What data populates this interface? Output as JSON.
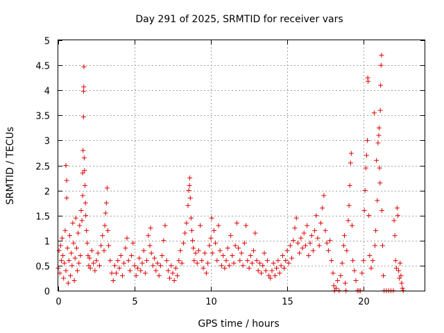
{
  "chart_data": {
    "type": "scatter",
    "title": "Day 291 of 2025, SRMTID for receiver vars",
    "xlabel": "GPS time / hours",
    "ylabel": "SRMTID / TECUs",
    "xlim": [
      0,
      24
    ],
    "ylim": [
      0,
      5
    ],
    "x_ticks": [
      0,
      5,
      10,
      15,
      20
    ],
    "x_tick_labels": [
      "0",
      "5",
      "10",
      "15",
      "20"
    ],
    "y_ticks": [
      0,
      0.5,
      1,
      1.5,
      2,
      2.5,
      3,
      3.5,
      4,
      4.5,
      5
    ],
    "y_tick_labels": [
      "0",
      "0.5",
      "1",
      "1.5",
      "2",
      "2.5",
      "3",
      "3.5",
      "4",
      "4.5",
      "5"
    ],
    "grid": true,
    "marker": "plus",
    "series_color": "#e00000",
    "series": [
      {
        "name": "SRMTID",
        "points": [
          [
            0.0,
            0.45
          ],
          [
            0.05,
            0.8
          ],
          [
            0.1,
            0.35
          ],
          [
            0.15,
            0.9
          ],
          [
            0.2,
            0.6
          ],
          [
            0.25,
            1.05
          ],
          [
            0.3,
            0.7
          ],
          [
            0.35,
            0.25
          ],
          [
            0.4,
            0.55
          ],
          [
            0.45,
            1.2
          ],
          [
            0.5,
            0.4
          ],
          [
            0.5,
            2.5
          ],
          [
            0.55,
            2.2
          ],
          [
            0.55,
            1.85
          ],
          [
            0.6,
            0.85
          ],
          [
            0.65,
            0.15
          ],
          [
            0.7,
            0.6
          ],
          [
            0.75,
            1.1
          ],
          [
            0.8,
            0.3
          ],
          [
            0.85,
            0.75
          ],
          [
            0.9,
            0.5
          ],
          [
            0.95,
            1.35
          ],
          [
            1.0,
            0.95
          ],
          [
            1.05,
            0.2
          ],
          [
            1.1,
            0.65
          ],
          [
            1.15,
            1.45
          ],
          [
            1.2,
            0.85
          ],
          [
            1.25,
            0.4
          ],
          [
            1.3,
            1.15
          ],
          [
            1.35,
            0.55
          ],
          [
            1.4,
            1.3
          ],
          [
            1.45,
            0.7
          ],
          [
            1.5,
            1.6
          ],
          [
            1.55,
            1.4
          ],
          [
            1.6,
            1.9
          ],
          [
            1.6,
            2.35
          ],
          [
            1.62,
            2.8
          ],
          [
            1.65,
            3.47
          ],
          [
            1.66,
            3.98
          ],
          [
            1.67,
            4.07
          ],
          [
            1.68,
            4.47
          ],
          [
            1.7,
            2.65
          ],
          [
            1.72,
            2.4
          ],
          [
            1.75,
            2.1
          ],
          [
            1.78,
            1.75
          ],
          [
            1.8,
            1.5
          ],
          [
            1.85,
            1.2
          ],
          [
            1.9,
            0.95
          ],
          [
            1.95,
            0.7
          ],
          [
            2.0,
            0.5
          ],
          [
            2.05,
            0.65
          ],
          [
            2.1,
            0.45
          ],
          [
            2.2,
            0.8
          ],
          [
            2.3,
            0.55
          ],
          [
            2.4,
            0.4
          ],
          [
            2.5,
            0.6
          ],
          [
            2.6,
            0.75
          ],
          [
            2.7,
            0.5
          ],
          [
            2.8,
            0.9
          ],
          [
            2.9,
            1.1
          ],
          [
            3.0,
            0.8
          ],
          [
            3.05,
            1.3
          ],
          [
            3.1,
            1.55
          ],
          [
            3.15,
            1.75
          ],
          [
            3.2,
            2.05
          ],
          [
            3.25,
            1.2
          ],
          [
            3.3,
            0.9
          ],
          [
            3.4,
            0.6
          ],
          [
            3.5,
            0.35
          ],
          [
            3.6,
            0.2
          ],
          [
            3.7,
            0.5
          ],
          [
            3.8,
            0.35
          ],
          [
            3.9,
            0.6
          ],
          [
            4.0,
            0.45
          ],
          [
            4.1,
            0.7
          ],
          [
            4.2,
            0.3
          ],
          [
            4.3,
            0.55
          ],
          [
            4.4,
            0.85
          ],
          [
            4.5,
            1.05
          ],
          [
            4.6,
            0.6
          ],
          [
            4.7,
            0.4
          ],
          [
            4.8,
            0.7
          ],
          [
            4.9,
            0.95
          ],
          [
            5.0,
            0.5
          ],
          [
            5.1,
            0.3
          ],
          [
            5.2,
            0.45
          ],
          [
            5.3,
            0.65
          ],
          [
            5.4,
            0.4
          ],
          [
            5.5,
            0.55
          ],
          [
            5.6,
            0.8
          ],
          [
            5.7,
            0.35
          ],
          [
            5.8,
            0.6
          ],
          [
            5.9,
            1.1
          ],
          [
            6.0,
            0.9
          ],
          [
            6.05,
            1.25
          ],
          [
            6.1,
            0.75
          ],
          [
            6.2,
            0.5
          ],
          [
            6.3,
            0.65
          ],
          [
            6.4,
            0.4
          ],
          [
            6.5,
            0.55
          ],
          [
            6.6,
            0.3
          ],
          [
            6.7,
            0.5
          ],
          [
            6.8,
            0.7
          ],
          [
            6.9,
            1.0
          ],
          [
            7.0,
            1.3
          ],
          [
            7.1,
            0.6
          ],
          [
            7.2,
            0.4
          ],
          [
            7.3,
            0.25
          ],
          [
            7.4,
            0.5
          ],
          [
            7.5,
            0.35
          ],
          [
            7.6,
            0.2
          ],
          [
            7.7,
            0.45
          ],
          [
            7.8,
            0.3
          ],
          [
            7.9,
            0.6
          ],
          [
            8.0,
            0.8
          ],
          [
            8.1,
            0.55
          ],
          [
            8.2,
            0.95
          ],
          [
            8.3,
            1.15
          ],
          [
            8.4,
            1.35
          ],
          [
            8.5,
            1.7
          ],
          [
            8.55,
            2.0
          ],
          [
            8.6,
            2.1
          ],
          [
            8.62,
            2.25
          ],
          [
            8.65,
            1.85
          ],
          [
            8.7,
            1.45
          ],
          [
            8.75,
            1.2
          ],
          [
            8.8,
            1.0
          ],
          [
            8.85,
            0.85
          ],
          [
            8.9,
            0.6
          ],
          [
            9.0,
            0.75
          ],
          [
            9.1,
            0.55
          ],
          [
            9.2,
            0.8
          ],
          [
            9.3,
            1.3
          ],
          [
            9.4,
            0.6
          ],
          [
            9.5,
            0.45
          ],
          [
            9.6,
            0.75
          ],
          [
            9.7,
            0.35
          ],
          [
            9.8,
            0.55
          ],
          [
            9.9,
            0.9
          ],
          [
            10.0,
            1.05
          ],
          [
            10.05,
            1.45
          ],
          [
            10.1,
            0.75
          ],
          [
            10.2,
            1.2
          ],
          [
            10.3,
            0.95
          ],
          [
            10.4,
            0.6
          ],
          [
            10.5,
            1.3
          ],
          [
            10.6,
            0.8
          ],
          [
            10.7,
            0.5
          ],
          [
            10.8,
            0.7
          ],
          [
            10.9,
            0.45
          ],
          [
            11.0,
            0.6
          ],
          [
            11.1,
            0.85
          ],
          [
            11.2,
            0.5
          ],
          [
            11.3,
            1.1
          ],
          [
            11.4,
            0.7
          ],
          [
            11.5,
            0.55
          ],
          [
            11.6,
            0.9
          ],
          [
            11.7,
            1.35
          ],
          [
            11.8,
            0.85
          ],
          [
            11.9,
            0.6
          ],
          [
            12.0,
            0.75
          ],
          [
            12.1,
            0.5
          ],
          [
            12.2,
            0.95
          ],
          [
            12.3,
            1.3
          ],
          [
            12.4,
            0.6
          ],
          [
            12.5,
            0.45
          ],
          [
            12.6,
            0.7
          ],
          [
            12.7,
            0.55
          ],
          [
            12.8,
            0.8
          ],
          [
            12.9,
            1.15
          ],
          [
            13.0,
            0.6
          ],
          [
            13.1,
            0.4
          ],
          [
            13.2,
            0.55
          ],
          [
            13.3,
            0.35
          ],
          [
            13.4,
            0.5
          ],
          [
            13.5,
            0.75
          ],
          [
            13.6,
            0.4
          ],
          [
            13.7,
            0.6
          ],
          [
            13.8,
            0.3
          ],
          [
            13.9,
            0.25
          ],
          [
            14.0,
            0.4
          ],
          [
            14.1,
            0.55
          ],
          [
            14.2,
            0.3
          ],
          [
            14.3,
            0.45
          ],
          [
            14.4,
            0.6
          ],
          [
            14.5,
            0.35
          ],
          [
            14.6,
            0.5
          ],
          [
            14.7,
            0.7
          ],
          [
            14.8,
            0.45
          ],
          [
            14.9,
            0.6
          ],
          [
            15.0,
            0.8
          ],
          [
            15.1,
            0.55
          ],
          [
            15.2,
            0.9
          ],
          [
            15.3,
            0.65
          ],
          [
            15.4,
            1.0
          ],
          [
            15.5,
            1.25
          ],
          [
            15.6,
            1.45
          ],
          [
            15.7,
            0.95
          ],
          [
            15.8,
            0.75
          ],
          [
            15.9,
            1.05
          ],
          [
            16.0,
            0.85
          ],
          [
            16.1,
            1.15
          ],
          [
            16.2,
            0.9
          ],
          [
            16.3,
            1.3
          ],
          [
            16.4,
            0.7
          ],
          [
            16.5,
            0.95
          ],
          [
            16.6,
            1.1
          ],
          [
            16.7,
            0.8
          ],
          [
            16.8,
            1.2
          ],
          [
            16.9,
            1.5
          ],
          [
            17.0,
            1.05
          ],
          [
            17.1,
            0.9
          ],
          [
            17.2,
            1.35
          ],
          [
            17.3,
            1.65
          ],
          [
            17.4,
            1.9
          ],
          [
            17.5,
            1.2
          ],
          [
            17.6,
            0.95
          ],
          [
            17.7,
            0.8
          ],
          [
            17.8,
            1.0
          ],
          [
            17.9,
            0.6
          ],
          [
            18.0,
            0.35
          ],
          [
            18.05,
            0.1
          ],
          [
            18.1,
            0.0
          ],
          [
            18.2,
            0.05
          ],
          [
            18.3,
            0.2
          ],
          [
            18.4,
            0.0
          ],
          [
            18.5,
            0.3
          ],
          [
            18.6,
            0.55
          ],
          [
            18.7,
            0.9
          ],
          [
            18.75,
            1.1
          ],
          [
            18.8,
            0.15
          ],
          [
            18.85,
            0.0
          ],
          [
            18.9,
            0.8
          ],
          [
            19.0,
            1.4
          ],
          [
            19.05,
            1.7
          ],
          [
            19.1,
            2.1
          ],
          [
            19.15,
            2.55
          ],
          [
            19.2,
            2.74
          ],
          [
            19.25,
            1.3
          ],
          [
            19.3,
            0.6
          ],
          [
            19.4,
            0.4
          ],
          [
            19.5,
            0.2
          ],
          [
            19.6,
            0.0
          ],
          [
            19.7,
            0.0
          ],
          [
            19.8,
            0.0
          ],
          [
            19.9,
            0.35
          ],
          [
            20.0,
            0.6
          ],
          [
            20.05,
            1.6
          ],
          [
            20.1,
            2.0
          ],
          [
            20.15,
            2.45
          ],
          [
            20.2,
            2.7
          ],
          [
            20.25,
            3.0
          ],
          [
            20.28,
            4.25
          ],
          [
            20.3,
            4.18
          ],
          [
            20.35,
            1.5
          ],
          [
            20.4,
            0.7
          ],
          [
            20.5,
            0.45
          ],
          [
            20.6,
            0.6
          ],
          [
            20.7,
            3.55
          ],
          [
            20.75,
            0.9
          ],
          [
            20.8,
            1.2
          ],
          [
            20.85,
            2.6
          ],
          [
            20.9,
            1.8
          ],
          [
            20.95,
            2.95
          ],
          [
            21.0,
            3.1
          ],
          [
            21.02,
            3.25
          ],
          [
            21.05,
            2.45
          ],
          [
            21.08,
            2.15
          ],
          [
            21.1,
            3.6
          ],
          [
            21.12,
            4.1
          ],
          [
            21.15,
            4.5
          ],
          [
            21.18,
            4.7
          ],
          [
            21.2,
            1.6
          ],
          [
            21.25,
            0.9
          ],
          [
            21.3,
            0.3
          ],
          [
            21.35,
            0.0
          ],
          [
            21.5,
            0.0
          ],
          [
            21.65,
            0.0
          ],
          [
            21.8,
            0.0
          ],
          [
            21.95,
            0.0
          ],
          [
            22.0,
            1.4
          ],
          [
            22.05,
            1.1
          ],
          [
            22.1,
            0.6
          ],
          [
            22.15,
            0.45
          ],
          [
            22.2,
            1.65
          ],
          [
            22.25,
            1.5
          ],
          [
            22.3,
            0.4
          ],
          [
            22.35,
            0.25
          ],
          [
            22.4,
            0.55
          ],
          [
            22.45,
            0.3
          ],
          [
            22.5,
            0.15
          ],
          [
            22.55,
            0.05
          ],
          [
            22.6,
            0.0
          ]
        ]
      }
    ]
  }
}
